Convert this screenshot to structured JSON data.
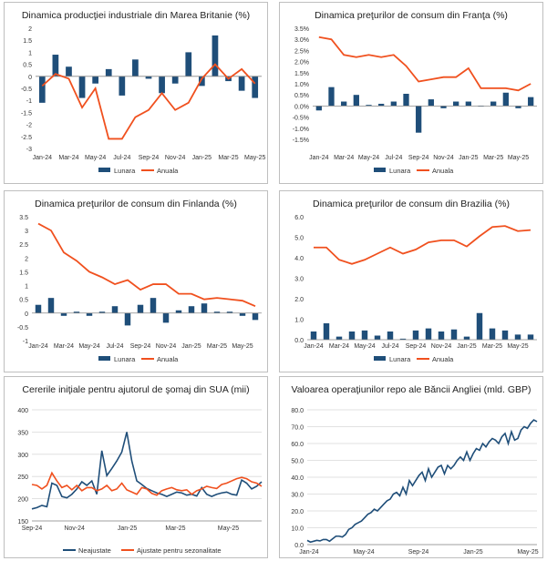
{
  "colors": {
    "bar": "#1f4e79",
    "line": "#f0501e",
    "line2": "#1f4e79",
    "axis": "#888888",
    "grid": "#d9d9d9"
  },
  "chart_data": [
    {
      "type": "bar-line",
      "title": "Dinamica producţiei industriale din Marea Britanie (%)",
      "categories": [
        "Jan-24",
        "Feb-24",
        "Mar-24",
        "Apr-24",
        "May-24",
        "Jun-24",
        "Jul-24",
        "Aug-24",
        "Sep-24",
        "Oct-24",
        "Nov-24",
        "Dec-24",
        "Jan-25",
        "Feb-25",
        "Mar-25",
        "Apr-25",
        "May-25"
      ],
      "tick_labels": [
        "Jan-24",
        "Mar-24",
        "May-24",
        "Jul-24",
        "Sep-24",
        "Nov-24",
        "Jan-25",
        "Mar-25",
        "May-25"
      ],
      "y_ticks": [
        "2",
        "1.5",
        "1",
        "0.5",
        "0",
        "-0.5",
        "-1",
        "-1.5",
        "-2",
        "-2.5",
        "-3"
      ],
      "ylim": [
        -3,
        2
      ],
      "series": [
        {
          "name": "Lunara",
          "kind": "bar",
          "values": [
            -1.1,
            0.9,
            0.4,
            -0.9,
            -0.3,
            0.3,
            -0.8,
            0.7,
            -0.1,
            -0.7,
            -0.3,
            1.0,
            -0.4,
            1.7,
            -0.2,
            -0.6,
            -0.9
          ]
        },
        {
          "name": "Anuala",
          "kind": "line",
          "values": [
            -0.4,
            0.1,
            -0.1,
            -1.3,
            -0.5,
            -2.6,
            -2.6,
            -1.7,
            -1.4,
            -0.7,
            -1.4,
            -1.1,
            -0.1,
            0.5,
            -0.1,
            0.3,
            -0.3
          ]
        }
      ],
      "legend": [
        "Lunara",
        "Anuala"
      ]
    },
    {
      "type": "bar-line",
      "title": "Dinamica preţurilor de consum din Franţa (%)",
      "categories": [
        "Jan-24",
        "Feb-24",
        "Mar-24",
        "Apr-24",
        "May-24",
        "Jun-24",
        "Jul-24",
        "Aug-24",
        "Sep-24",
        "Oct-24",
        "Nov-24",
        "Dec-24",
        "Jan-25",
        "Feb-25",
        "Mar-25",
        "Apr-25",
        "May-25",
        "Jun-25"
      ],
      "tick_labels": [
        "Jan-24",
        "Mar-24",
        "May-24",
        "Jul-24",
        "Sep-24",
        "Nov-24",
        "Jan-25",
        "Mar-25",
        "May-25"
      ],
      "y_ticks": [
        "3.5%",
        "3.0%",
        "2.5%",
        "2.0%",
        "1.5%",
        "1.0%",
        "0.5%",
        "0.0%",
        "-0.5%",
        "-1.0%",
        "-1.5%"
      ],
      "ylim": [
        -1.5,
        3.5
      ],
      "series": [
        {
          "name": "Lunara",
          "kind": "bar",
          "values": [
            -0.2,
            0.85,
            0.2,
            0.5,
            0.05,
            0.1,
            0.2,
            0.55,
            -1.2,
            0.3,
            -0.1,
            0.2,
            0.2,
            0.0,
            0.2,
            0.6,
            -0.1,
            0.4
          ]
        },
        {
          "name": "Anuala",
          "kind": "line",
          "values": [
            3.1,
            3.0,
            2.3,
            2.2,
            2.3,
            2.2,
            2.3,
            1.8,
            1.1,
            1.2,
            1.3,
            1.3,
            1.7,
            0.8,
            0.8,
            0.8,
            0.7,
            1.0
          ]
        }
      ],
      "legend": [
        "Lunara",
        "Anuala"
      ]
    },
    {
      "type": "bar-line",
      "title": "Dinamica preţurilor de consum din Finlanda (%)",
      "categories": [
        "Jan-24",
        "Feb-24",
        "Mar-24",
        "Apr-24",
        "May-24",
        "Jun-24",
        "Jul-24",
        "Aug-24",
        "Sep-24",
        "Oct-24",
        "Nov-24",
        "Dec-24",
        "Jan-25",
        "Feb-25",
        "Mar-25",
        "Apr-25",
        "May-25",
        "Jun-25"
      ],
      "tick_labels": [
        "Jan-24",
        "Mar-24",
        "May-24",
        "Jul-24",
        "Sep-24",
        "Nov-24",
        "Jan-25",
        "Mar-25",
        "May-25"
      ],
      "y_ticks": [
        "3.5",
        "3",
        "2.5",
        "2",
        "1.5",
        "1",
        "0.5",
        "0",
        "-0.5",
        "-1"
      ],
      "ylim": [
        -1,
        3.5
      ],
      "series": [
        {
          "name": "Lunara",
          "kind": "bar",
          "values": [
            0.3,
            0.55,
            -0.1,
            0.05,
            -0.1,
            0.05,
            0.25,
            -0.45,
            0.3,
            0.55,
            -0.35,
            0.1,
            0.25,
            0.35,
            0.05,
            0.05,
            -0.1,
            -0.25
          ]
        },
        {
          "name": "Anuala",
          "kind": "line",
          "values": [
            3.25,
            3.0,
            2.2,
            1.9,
            1.5,
            1.3,
            1.05,
            1.2,
            0.85,
            1.05,
            1.05,
            0.7,
            0.7,
            0.5,
            0.55,
            0.5,
            0.45,
            0.25
          ]
        }
      ],
      "legend": [
        "Lunara",
        "Anuala"
      ]
    },
    {
      "type": "bar-line",
      "title": "Dinamica preţurilor de consum din Brazilia (%)",
      "categories": [
        "Jan-24",
        "Feb-24",
        "Mar-24",
        "Apr-24",
        "May-24",
        "Jun-24",
        "Jul-24",
        "Aug-24",
        "Sep-24",
        "Oct-24",
        "Nov-24",
        "Dec-24",
        "Jan-25",
        "Feb-25",
        "Mar-25",
        "Apr-25",
        "May-25",
        "Jun-25"
      ],
      "tick_labels": [
        "Jan-24",
        "Mar-24",
        "May-24",
        "Jul-24",
        "Sep-24",
        "Nov-24",
        "Jan-25",
        "Mar-25",
        "May-25"
      ],
      "y_ticks": [
        "6.0",
        "5.0",
        "4.0",
        "3.0",
        "2.0",
        "1.0",
        "0.0"
      ],
      "ylim": [
        0,
        6
      ],
      "series": [
        {
          "name": "Lunara",
          "kind": "bar",
          "values": [
            0.4,
            0.8,
            0.15,
            0.4,
            0.45,
            0.2,
            0.4,
            0.05,
            0.45,
            0.55,
            0.4,
            0.5,
            0.15,
            1.3,
            0.55,
            0.45,
            0.25,
            0.25
          ]
        },
        {
          "name": "Anuala",
          "kind": "line",
          "values": [
            4.5,
            4.5,
            3.9,
            3.7,
            3.9,
            4.2,
            4.5,
            4.2,
            4.4,
            4.75,
            4.85,
            4.85,
            4.55,
            5.05,
            5.5,
            5.55,
            5.3,
            5.35
          ]
        }
      ],
      "legend": [
        "Lunara",
        "Anuala"
      ]
    },
    {
      "type": "line",
      "title": "Cererile iniţiale pentru ajutorul de şomaj din SUA (mii)",
      "tick_labels": [
        "Sep-24",
        "Nov-24",
        "Jan-25",
        "Mar-25",
        "May-25"
      ],
      "y_ticks": [
        "400",
        "350",
        "300",
        "250",
        "200",
        "150"
      ],
      "ylim": [
        150,
        400
      ],
      "series": [
        {
          "name": "Neajustate",
          "color": "line2",
          "values": [
            177,
            180,
            185,
            182,
            235,
            230,
            205,
            202,
            210,
            222,
            238,
            230,
            240,
            210,
            308,
            252,
            268,
            285,
            305,
            350,
            285,
            240,
            232,
            223,
            218,
            213,
            210,
            205,
            210,
            215,
            213,
            208,
            210,
            206,
            225,
            210,
            205,
            210,
            213,
            215,
            210,
            208,
            242,
            235,
            222,
            228,
            238
          ]
        },
        {
          "name": "Ajustate pentru sezonalitate",
          "color": "line",
          "values": [
            232,
            230,
            222,
            230,
            258,
            240,
            225,
            230,
            220,
            230,
            218,
            225,
            225,
            218,
            222,
            230,
            218,
            222,
            235,
            220,
            215,
            210,
            225,
            222,
            212,
            208,
            218,
            222,
            225,
            220,
            218,
            220,
            210,
            218,
            222,
            228,
            225,
            223,
            232,
            235,
            240,
            245,
            248,
            245,
            238,
            235,
            228
          ]
        }
      ],
      "legend": [
        "Neajustate",
        "Ajustate pentru sezonalitate"
      ]
    },
    {
      "type": "line",
      "title": "Valoarea operaţiunilor repo ale Băncii Angliei (mld. GBP)",
      "tick_labels": [
        "Jan-24",
        "May-24",
        "Sep-24",
        "Jan-25",
        "May-25"
      ],
      "y_ticks": [
        "80.0",
        "70.0",
        "60.0",
        "50.0",
        "40.0",
        "30.0",
        "20.0",
        "10.0",
        "0.0"
      ],
      "ylim": [
        0,
        80
      ],
      "series": [
        {
          "name": "Repo",
          "color": "line2",
          "values": [
            2.5,
            1.5,
            2.0,
            2.5,
            2.2,
            3.0,
            3.0,
            2.0,
            3.5,
            5.0,
            5.0,
            4.5,
            6.0,
            9.0,
            10.0,
            12.0,
            13.0,
            14.0,
            16.0,
            18.0,
            19.0,
            21.0,
            20.0,
            22.0,
            24.0,
            26.0,
            27.0,
            30.0,
            31.0,
            29.0,
            34.0,
            30.0,
            38.0,
            35.0,
            38.0,
            41.0,
            43.0,
            38.0,
            45.0,
            40.0,
            43.0,
            46.0,
            47.0,
            42.0,
            47.0,
            45.0,
            47.0,
            50.0,
            52.0,
            50.0,
            55.0,
            50.0,
            54.0,
            57.0,
            56.0,
            60.0,
            58.0,
            61.0,
            63.0,
            62.0,
            60.0,
            64.0,
            66.0,
            60.0,
            67.0,
            62.0,
            63.0,
            68.0,
            70.0,
            69.0,
            72.0,
            74.0,
            73.0
          ]
        }
      ],
      "legend": []
    }
  ]
}
